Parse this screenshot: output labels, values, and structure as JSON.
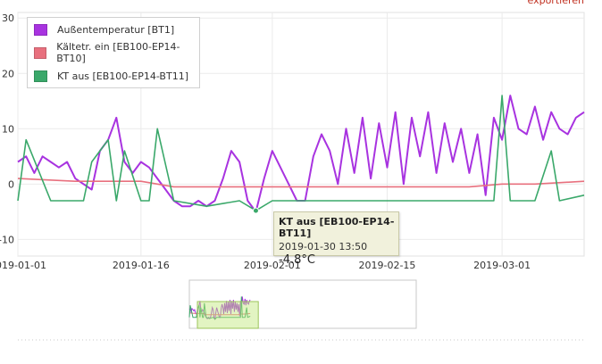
{
  "export_label": "exportieren",
  "tooltip": {
    "series": "KT aus [EB100-EP14-BT11]",
    "time": "2019-01-30 13:50",
    "value": "-4.8°C"
  },
  "chart_data": {
    "type": "line",
    "title": "",
    "xlabel": "",
    "ylabel": "",
    "x_range": [
      "2019-01-01",
      "2019-03-11"
    ],
    "ylim": [
      -13,
      31
    ],
    "y_ticks": [
      -10,
      0,
      10,
      20,
      30
    ],
    "x_ticks": [
      "2019-01-01",
      "2019-01-16",
      "2019-02-01",
      "2019-02-15",
      "2019-03-01"
    ],
    "grid": true,
    "legend_position": "top-left",
    "series": [
      {
        "name": "Außentemperatur [BT1]",
        "color": "#a833e0",
        "x": [
          "2019-01-01",
          "2019-01-02",
          "2019-01-03",
          "2019-01-04",
          "2019-01-05",
          "2019-01-06",
          "2019-01-07",
          "2019-01-08",
          "2019-01-09",
          "2019-01-10",
          "2019-01-11",
          "2019-01-12",
          "2019-01-13",
          "2019-01-14",
          "2019-01-15",
          "2019-01-16",
          "2019-01-17",
          "2019-01-18",
          "2019-01-19",
          "2019-01-20",
          "2019-01-21",
          "2019-01-22",
          "2019-01-23",
          "2019-01-24",
          "2019-01-25",
          "2019-01-26",
          "2019-01-27",
          "2019-01-28",
          "2019-01-29",
          "2019-01-30",
          "2019-01-31",
          "2019-02-01",
          "2019-02-02",
          "2019-02-03",
          "2019-02-04",
          "2019-02-05",
          "2019-02-06",
          "2019-02-07",
          "2019-02-08",
          "2019-02-09",
          "2019-02-10",
          "2019-02-11",
          "2019-02-12",
          "2019-02-13",
          "2019-02-14",
          "2019-02-15",
          "2019-02-16",
          "2019-02-17",
          "2019-02-18",
          "2019-02-19",
          "2019-02-20",
          "2019-02-21",
          "2019-02-22",
          "2019-02-23",
          "2019-02-24",
          "2019-02-25",
          "2019-02-26",
          "2019-02-27",
          "2019-02-28",
          "2019-03-01",
          "2019-03-02",
          "2019-03-03",
          "2019-03-04",
          "2019-03-05",
          "2019-03-06",
          "2019-03-07",
          "2019-03-08",
          "2019-03-09",
          "2019-03-10",
          "2019-03-11"
        ],
        "values": [
          4,
          5,
          2,
          5,
          4,
          3,
          4,
          1,
          0,
          -1,
          6,
          8,
          12,
          4,
          2,
          4,
          3,
          1,
          -1,
          -3,
          -4,
          -4,
          -3,
          -4,
          -3,
          1,
          6,
          4,
          -3,
          -5,
          1,
          6,
          3,
          0,
          -3,
          -3,
          5,
          9,
          6,
          0,
          10,
          2,
          12,
          1,
          11,
          3,
          13,
          0,
          12,
          5,
          13,
          2,
          11,
          4,
          10,
          2,
          9,
          -2,
          12,
          8,
          16,
          10,
          9,
          14,
          8,
          13,
          10,
          9,
          12,
          13
        ]
      },
      {
        "name": "Kältetr. ein [EB100-EP14-BT10]",
        "color": "#e8707e",
        "x": [
          "2019-01-01",
          "2019-01-08",
          "2019-01-12",
          "2019-01-16",
          "2019-01-20",
          "2019-01-24",
          "2019-01-28",
          "2019-02-01",
          "2019-02-05",
          "2019-02-09",
          "2019-02-13",
          "2019-02-17",
          "2019-02-21",
          "2019-02-25",
          "2019-03-01",
          "2019-03-05",
          "2019-03-11"
        ],
        "values": [
          1,
          0.5,
          0.5,
          0.5,
          -0.5,
          -0.5,
          -0.5,
          -0.5,
          -0.5,
          -0.5,
          -0.5,
          -0.5,
          -0.5,
          -0.5,
          0,
          0,
          0.5
        ]
      },
      {
        "name": "KT aus [EB100-EP14-BT11]",
        "color": "#3aa86a",
        "x": [
          "2019-01-01",
          "2019-01-02",
          "2019-01-05",
          "2019-01-09",
          "2019-01-10",
          "2019-01-11",
          "2019-01-12",
          "2019-01-13",
          "2019-01-14",
          "2019-01-16",
          "2019-01-17",
          "2019-01-18",
          "2019-01-20",
          "2019-01-24",
          "2019-01-28",
          "2019-01-30",
          "2019-02-01",
          "2019-02-05",
          "2019-02-10",
          "2019-02-15",
          "2019-02-20",
          "2019-02-26",
          "2019-02-28",
          "2019-03-01",
          "2019-03-02",
          "2019-03-05",
          "2019-03-07",
          "2019-03-08",
          "2019-03-11"
        ],
        "values": [
          -3,
          8,
          -3,
          -3,
          4,
          6,
          8,
          -3,
          6,
          -3,
          -3,
          10,
          -3,
          -4,
          -3,
          -4.8,
          -3,
          -3,
          -3,
          -3,
          -3,
          -3,
          -3,
          16,
          -3,
          -3,
          6,
          -3,
          -2
        ]
      }
    ]
  }
}
